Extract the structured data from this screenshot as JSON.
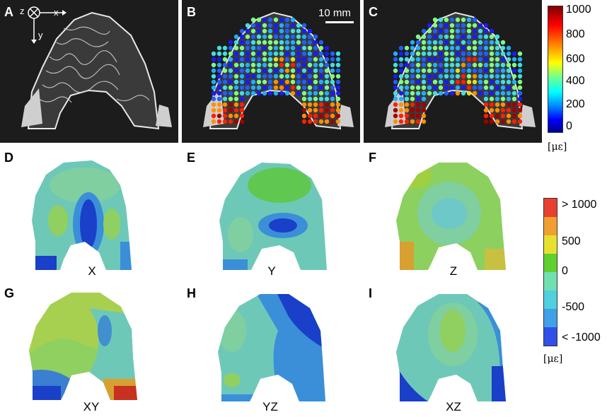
{
  "panels": {
    "A": "A",
    "B": "B",
    "C": "C",
    "D": "D",
    "E": "E",
    "F": "F",
    "G": "G",
    "H": "H",
    "I": "I"
  },
  "axes": {
    "z": "z",
    "x": "x",
    "y": "y"
  },
  "scale_bar": "10 mm",
  "colorbar_top": {
    "ticks": [
      "1000",
      "800",
      "600",
      "400",
      "200",
      "0"
    ],
    "unit": "[με]",
    "colors": [
      "#7f0000",
      "#ff0000",
      "#ffff00",
      "#00ffff",
      "#0000ff",
      "#00008f"
    ]
  },
  "colorbar_bottom": {
    "ticks": [
      "> 1000",
      "500",
      "0",
      "-500",
      "< -1000"
    ],
    "unit": "[με]",
    "colors": [
      "#e84030",
      "#f0a030",
      "#e8e030",
      "#60d030",
      "#70e0b0",
      "#50d0e0",
      "#40a0e8",
      "#3050e8"
    ]
  },
  "strain_components": {
    "D": "X",
    "E": "Y",
    "F": "Z",
    "G": "XY",
    "H": "YZ",
    "I": "XZ"
  }
}
